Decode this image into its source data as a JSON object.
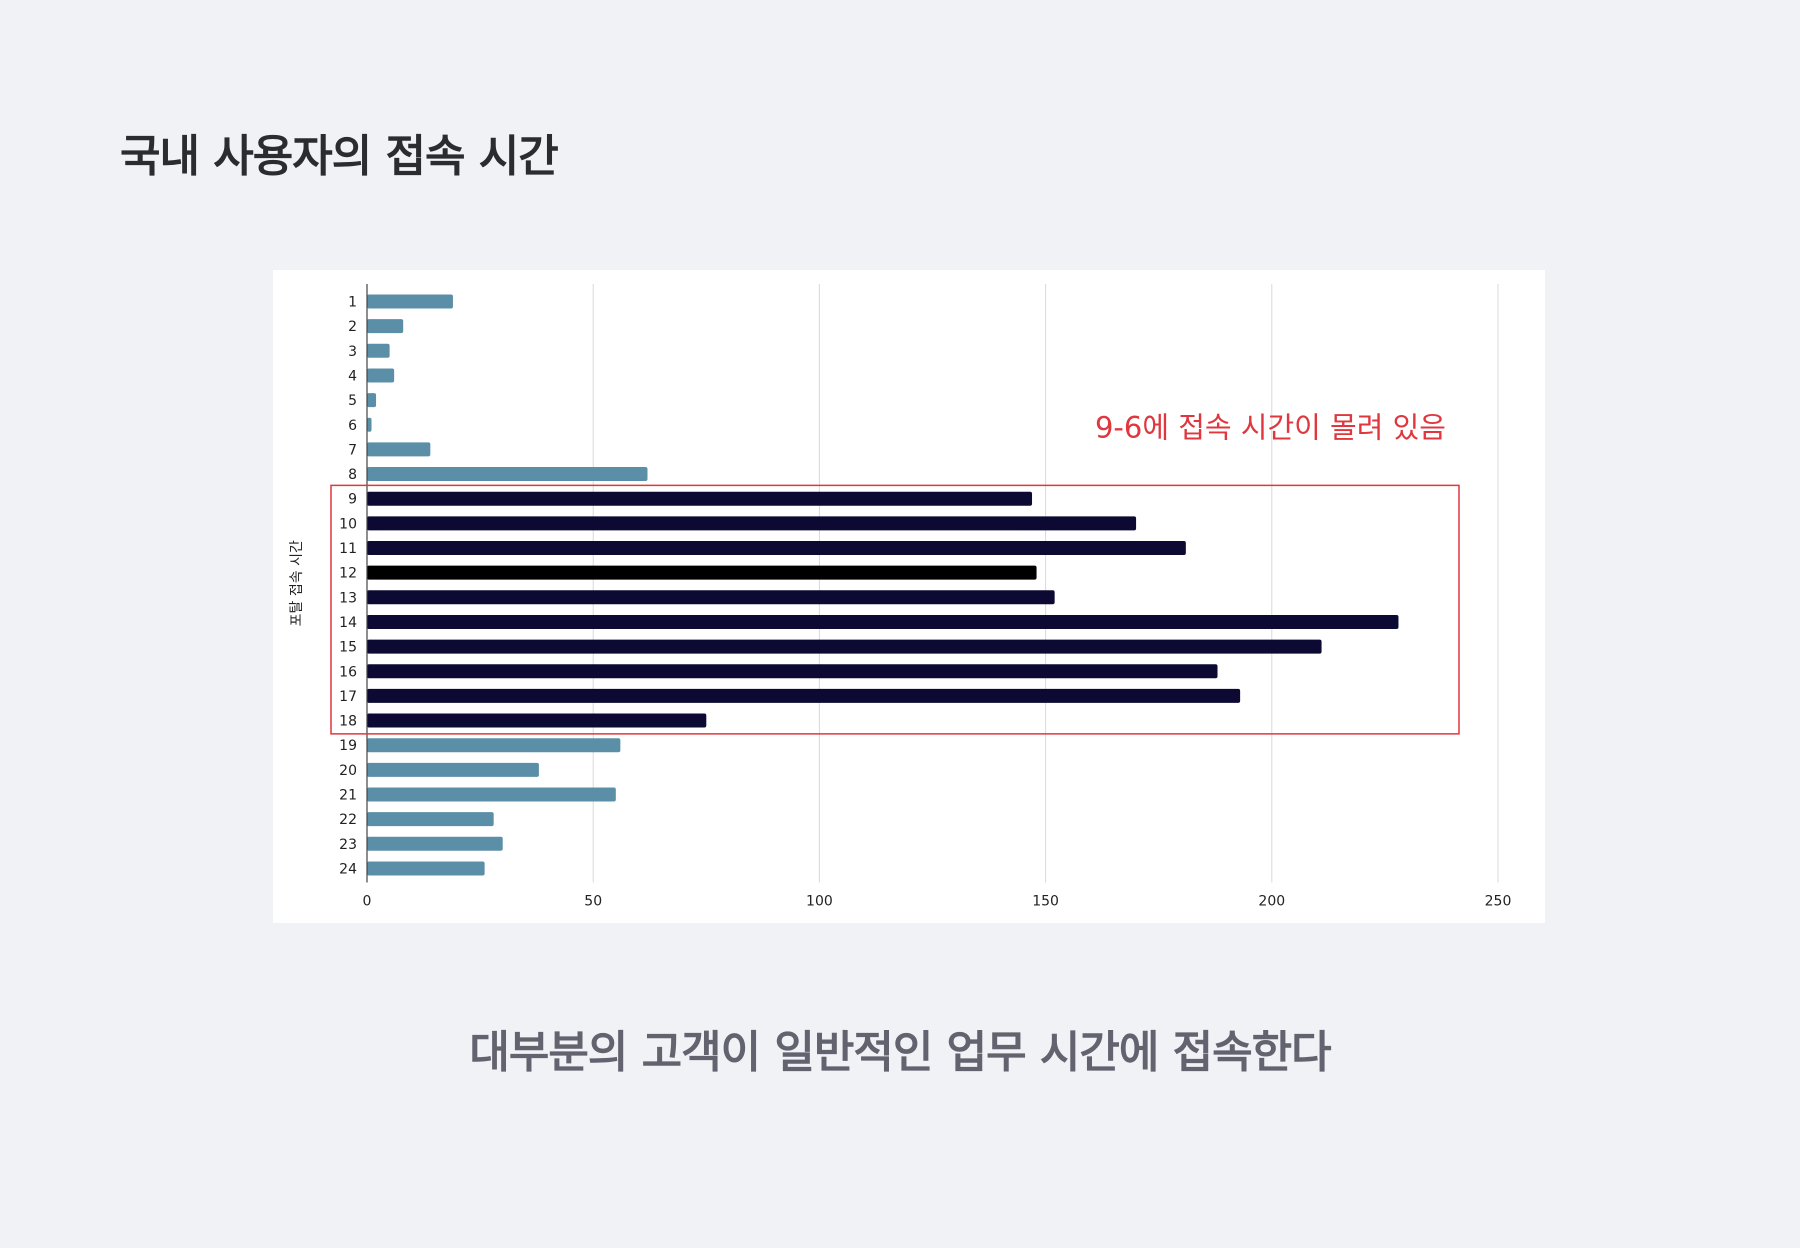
{
  "header": {
    "title": "국내 사용자의 접속 시간"
  },
  "footer": {
    "caption": "대부분의 고객이 일반적인 업무 시간에 접속한다"
  },
  "chart_data": {
    "type": "bar",
    "orientation": "horizontal",
    "ylabel": "포탈 접속 시간",
    "xlabel": "",
    "xlim": [
      0,
      250
    ],
    "x_ticks": [
      0,
      50,
      100,
      150,
      200,
      250
    ],
    "grid": true,
    "categories": [
      "1",
      "2",
      "3",
      "4",
      "5",
      "6",
      "7",
      "8",
      "9",
      "10",
      "11",
      "12",
      "13",
      "14",
      "15",
      "16",
      "17",
      "18",
      "19",
      "20",
      "21",
      "22",
      "23",
      "24"
    ],
    "values": [
      19,
      8,
      5,
      6,
      2,
      1,
      14,
      62,
      147,
      170,
      181,
      148,
      152,
      228,
      211,
      188,
      193,
      75,
      56,
      38,
      55,
      28,
      30,
      26
    ],
    "highlight": {
      "from_category": "9",
      "to_category": "18",
      "label": "9-6에 접속 시간이 몰려 있음",
      "box_color": "#e0373f",
      "label_color": "#e0373f"
    },
    "colors": {
      "normal_bar": "#5b8fa8",
      "highlight_bar": "#0c0a33",
      "highlight_bar_alt": "#000000",
      "grid": "#d9d9d9",
      "axis": "#444444",
      "tick_text": "#222222"
    }
  }
}
